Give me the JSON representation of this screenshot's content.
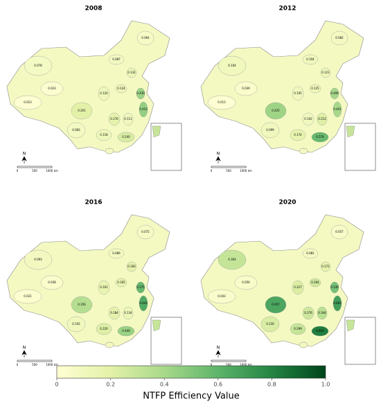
{
  "panels": [
    {
      "title": "2008",
      "labels": [
        "0.064",
        "0.087",
        "0.078",
        "0.023",
        "0.013",
        "0.132",
        "0.120",
        "0.124",
        "0.201",
        "0.083",
        "0.118",
        "0.176",
        "0.111",
        "0.453",
        "0.240",
        "0.430"
      ]
    },
    {
      "title": "2012",
      "labels": [
        "0.082",
        "0.104",
        "0.104",
        "0.039",
        "0.013",
        "0.121",
        "0.105",
        "0.125",
        "0.425",
        "0.099",
        "0.174",
        "0.102",
        "0.212",
        "0.401",
        "0.574",
        "0.409"
      ]
    },
    {
      "title": "2016",
      "labels": [
        "0.072",
        "0.089",
        "0.093",
        "0.038",
        "0.021",
        "0.183",
        "0.161",
        "0.165",
        "0.356",
        "0.102",
        "0.220",
        "0.184",
        "0.134",
        "0.643",
        "0.440",
        "0.575"
      ]
    },
    {
      "title": "2020",
      "labels": [
        "0.057",
        "0.081",
        "0.304",
        "0.050",
        "0.043",
        "0.172",
        "0.227",
        "0.264",
        "0.657",
        "0.230",
        "0.299",
        "0.276",
        "0.344",
        "0.693",
        "0.819",
        "0.530"
      ]
    }
  ],
  "north": "N",
  "scale_labels": [
    "0",
    "500",
    "1000 km"
  ],
  "colorbar": {
    "label": "NTFP Efficiency Value",
    "lim": [
      0,
      1
    ],
    "ticks": [
      0,
      0.2,
      0.4,
      0.6,
      0.8,
      {
        "value": 1,
        "label": "1.0"
      }
    ],
    "colors": [
      "#ffffd4",
      "#e3f1a8",
      "#a8d98a",
      "#5db46a",
      "#238443",
      "#00441b"
    ]
  }
}
